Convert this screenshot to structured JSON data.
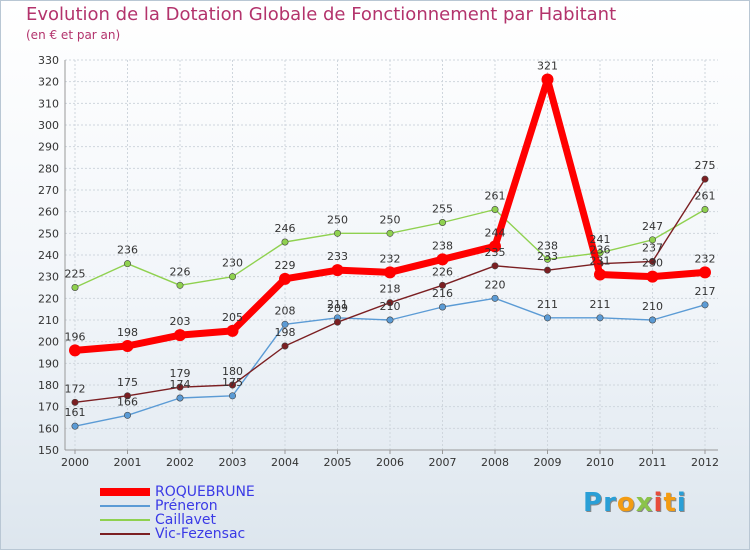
{
  "chart_data": {
    "type": "line",
    "title": "Evolution de la Dotation Globale de Fonctionnement par Habitant",
    "subtitle": "(en € et par an)",
    "x": [
      "2000",
      "2001",
      "2002",
      "2003",
      "2004",
      "2005",
      "2006",
      "2007",
      "2008",
      "2009",
      "2010",
      "2011",
      "2012"
    ],
    "ylim": [
      150,
      330
    ],
    "yticks": [
      150,
      160,
      170,
      180,
      190,
      200,
      210,
      220,
      230,
      240,
      250,
      260,
      270,
      280,
      290,
      300,
      310,
      320,
      330
    ],
    "grid": true,
    "series": [
      {
        "name": "ROQUEBRUNE",
        "color": "#ff0000",
        "values": [
          196,
          198,
          203,
          205,
          229,
          233,
          232,
          238,
          244,
          321,
          231,
          230,
          232
        ],
        "labels": [
          "196",
          "198",
          "203",
          "205",
          "229",
          "233",
          "232",
          "238",
          "244",
          "321",
          "231",
          "230",
          "232"
        ]
      },
      {
        "name": "Préneron",
        "color": "#5b9bd5",
        "values": [
          161,
          166,
          174,
          175,
          208,
          211,
          210,
          216,
          220,
          211,
          211,
          210,
          217
        ],
        "labels": [
          "161",
          "166",
          "174",
          "175",
          "208",
          "211",
          "210",
          "216",
          "220",
          "211",
          "211",
          "210",
          "217"
        ]
      },
      {
        "name": "Caillavet",
        "color": "#8fd14f",
        "values": [
          225,
          236,
          226,
          230,
          246,
          250,
          250,
          255,
          261,
          238,
          241,
          247,
          261
        ],
        "labels": [
          "225",
          "236",
          "226",
          "230",
          "246",
          "250",
          "250",
          "255",
          "261",
          "238",
          "241",
          "247",
          "261"
        ]
      },
      {
        "name": "Vic-Fezensac",
        "color": "#7b1f22",
        "values": [
          172,
          175,
          179,
          180,
          198,
          209,
          218,
          226,
          235,
          233,
          236,
          237,
          275
        ],
        "labels": [
          "172",
          "175",
          "179",
          "180",
          "198",
          "209",
          "218",
          "226",
          "235",
          "233",
          "236",
          "237",
          "275"
        ]
      }
    ]
  },
  "logo": {
    "letters": [
      "P",
      "r",
      "o",
      "x",
      "i",
      "t",
      "i"
    ],
    "colors": [
      "#2a9fd6",
      "#2a9fd6",
      "#f39c12",
      "#8bc34a",
      "#e74c3c",
      "#f39c12",
      "#2a9fd6"
    ]
  }
}
